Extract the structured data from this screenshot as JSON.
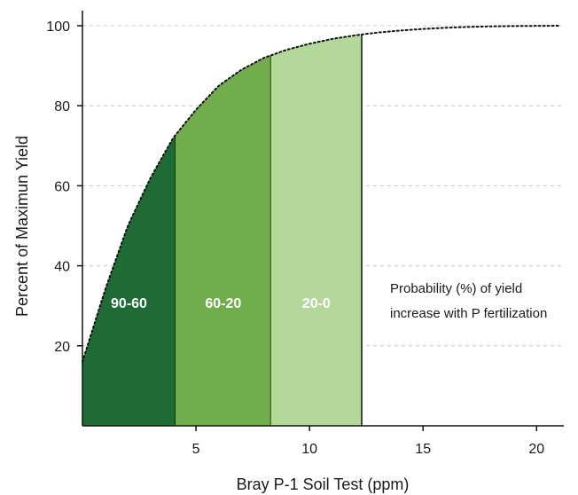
{
  "chart_data": {
    "type": "area",
    "xlabel": "Bray P-1 Soil Test (ppm)",
    "ylabel": "Percent of Maximun Yield",
    "xlim": [
      0,
      21.2
    ],
    "ylim": [
      0,
      102
    ],
    "x_ticks": [
      5,
      10,
      15,
      20
    ],
    "y_ticks": [
      20,
      40,
      60,
      80,
      100
    ],
    "grid": "horizontal dashed",
    "curve": {
      "style": "dotted",
      "x": [
        0,
        1,
        2,
        3,
        4,
        5,
        6,
        7,
        8,
        9,
        10,
        11,
        12,
        13,
        14,
        15,
        16,
        17,
        18,
        19,
        20,
        21
      ],
      "y": [
        16,
        34,
        50,
        62,
        72,
        79,
        85,
        89,
        92,
        94,
        95.5,
        96.7,
        97.6,
        98.3,
        98.8,
        99.2,
        99.5,
        99.7,
        99.85,
        99.93,
        99.97,
        100
      ]
    },
    "bands": [
      {
        "label": "90-60",
        "x_start": 0,
        "x_end": 4.1,
        "color": "#1e6b35",
        "label_color": "#ffffff"
      },
      {
        "label": "60-20",
        "x_start": 4.1,
        "x_end": 8.3,
        "color": "#72ad4d",
        "label_color": "#ffffff"
      },
      {
        "label": "20-0",
        "x_start": 8.3,
        "x_end": 12.3,
        "color": "#b4d79a",
        "label_color": "#ffffff"
      }
    ],
    "annotation": {
      "lines": [
        "Probability (%) of yield",
        "increase with P fertilization"
      ]
    }
  }
}
